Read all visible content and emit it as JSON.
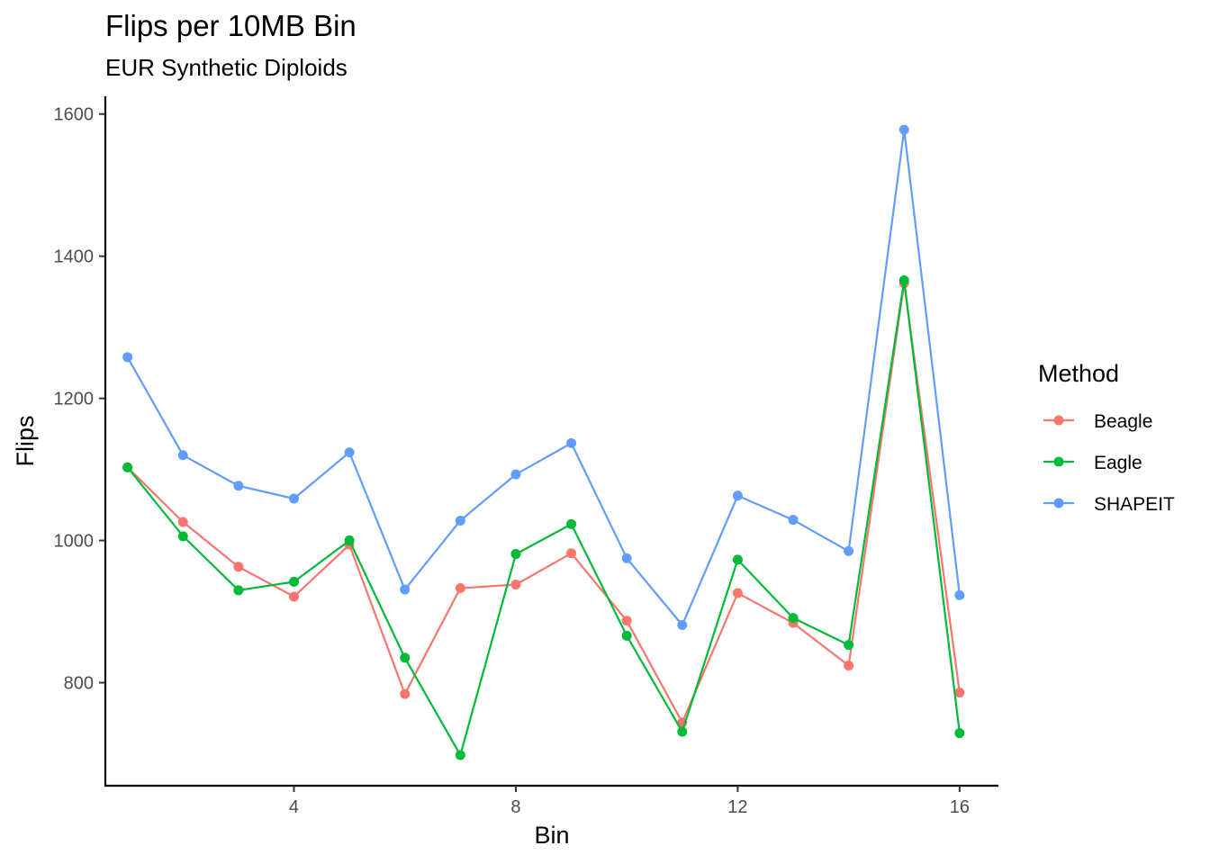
{
  "chart_data": {
    "type": "line",
    "title": "Flips per 10MB Bin",
    "subtitle": "EUR Synthetic Diploids",
    "xlabel": "Bin",
    "ylabel": "Flips",
    "xlim": [
      0.6,
      16.7
    ],
    "ylim": [
      655,
      1625
    ],
    "x_ticks": [
      4,
      8,
      12,
      16
    ],
    "y_ticks": [
      800,
      1000,
      1200,
      1400,
      1600
    ],
    "grid": false,
    "legend_title": "Method",
    "legend_position": "right",
    "x": [
      1,
      2,
      3,
      4,
      5,
      6,
      7,
      8,
      9,
      10,
      11,
      12,
      13,
      14,
      15,
      16
    ],
    "series": [
      {
        "name": "Beagle",
        "color": "#F8766D",
        "values": [
          1103,
          1026,
          963,
          921,
          994,
          784,
          933,
          938,
          982,
          887,
          744,
          926,
          884,
          824,
          1362,
          786
        ]
      },
      {
        "name": "Eagle",
        "color": "#00BA38",
        "values": [
          1103,
          1006,
          930,
          942,
          1000,
          835,
          698,
          981,
          1023,
          866,
          731,
          973,
          891,
          853,
          1366,
          729
        ]
      },
      {
        "name": "SHAPEIT",
        "color": "#619CFF",
        "values": [
          1258,
          1120,
          1077,
          1059,
          1124,
          931,
          1028,
          1093,
          1137,
          975,
          881,
          1063,
          1029,
          985,
          1578,
          923
        ]
      }
    ]
  }
}
